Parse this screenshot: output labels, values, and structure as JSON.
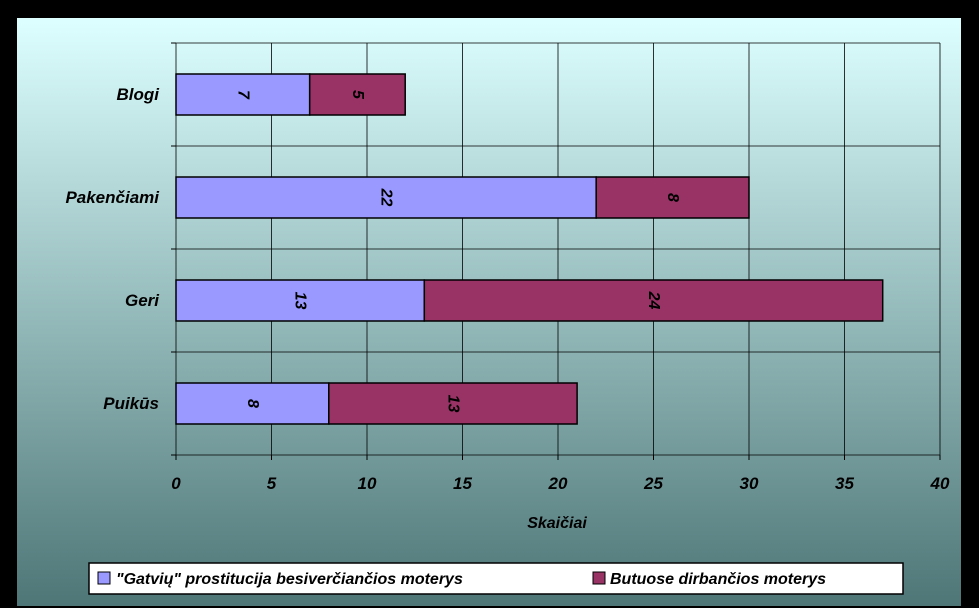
{
  "chart_data": {
    "type": "bar",
    "orientation": "horizontal",
    "stacked": true,
    "categories": [
      "Blogi",
      "Pakenčiami",
      "Geri",
      "Puikūs"
    ],
    "series": [
      {
        "name": "\"Gatvių\" prostitucija besiverčiančios moterys",
        "values": [
          7,
          22,
          13,
          8
        ],
        "color": "#9999FF"
      },
      {
        "name": "Butuose dirbančios moterys",
        "values": [
          5,
          8,
          24,
          13
        ],
        "color": "#993366"
      }
    ],
    "xlabel": "Skaičiai",
    "ylabel": "",
    "xlim": [
      0,
      40
    ],
    "xticks": [
      "0",
      "5",
      "10",
      "15",
      "20",
      "25",
      "30",
      "35",
      "40"
    ],
    "grid": true,
    "legend_position": "bottom",
    "data_labels": true,
    "background": {
      "top": "#DDFFFF",
      "bottom": "#4E7677"
    }
  }
}
